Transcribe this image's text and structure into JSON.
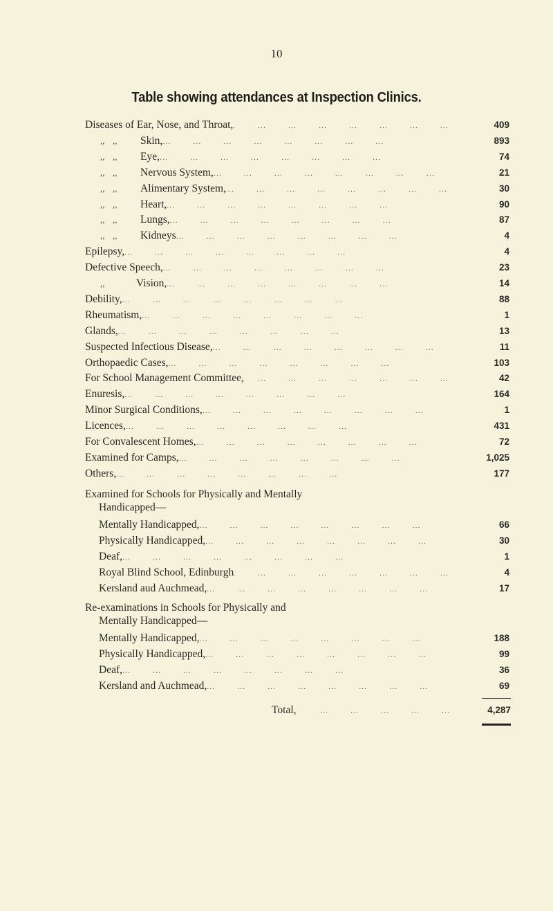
{
  "page_number": "10",
  "title": "Table showing attendances at Inspection Clinics.",
  "ditto_mark": ",,",
  "rows": [
    {
      "label": "Diseases of Ear, Nose, and Throat,",
      "value": "409"
    },
    {
      "label": "Skin,",
      "value": "893",
      "ditto": 2
    },
    {
      "label": "Eye,",
      "value": "74",
      "ditto": 2
    },
    {
      "label": "Nervous System,",
      "value": "21",
      "ditto": 2
    },
    {
      "label": "Alimentary System,",
      "value": "30",
      "ditto": 2
    },
    {
      "label": "Heart,",
      "value": "90",
      "ditto": 2
    },
    {
      "label": "Lungs,",
      "value": "87",
      "ditto": 2
    },
    {
      "label": "Kidneys",
      "value": "4",
      "ditto": 2
    },
    {
      "label": "Epilepsy,",
      "value": "4"
    },
    {
      "label": "Defective Speech,",
      "value": "23"
    },
    {
      "label": "Vision,",
      "value": "14",
      "ditto": 1
    },
    {
      "label": "Debility,",
      "value": "88"
    },
    {
      "label": "Rheumatism,",
      "value": "1"
    },
    {
      "label": "Glands,",
      "value": "13"
    },
    {
      "label": "Suspected Infectious Disease,",
      "value": "11"
    },
    {
      "label": "Orthopaedic Cases,",
      "value": "103"
    },
    {
      "label": "For School Management Committee,",
      "value": "42"
    },
    {
      "label": "Enuresis,",
      "value": "164"
    },
    {
      "label": "Minor Surgical Conditions,",
      "value": "1"
    },
    {
      "label": "Licences,",
      "value": "431"
    },
    {
      "label": "For Convalescent Homes,",
      "value": "72"
    },
    {
      "label": "Examined for Camps,",
      "value": "1,025"
    },
    {
      "label": "Others,",
      "value": "177"
    }
  ],
  "section1": {
    "heading_line1": "Examined for Schools for Physically and Mentally",
    "heading_line2": "Handicapped—",
    "rows": [
      {
        "label": "Mentally Handicapped,",
        "value": "66"
      },
      {
        "label": "Physically Handicapped,",
        "value": "30"
      },
      {
        "label": "Deaf,",
        "value": "1"
      },
      {
        "label": "Royal Blind School, Edinburgh",
        "value": "4"
      },
      {
        "label": "Kersland aud Auchmead,",
        "value": "17"
      }
    ]
  },
  "section2": {
    "heading_line1": "Re-examinations in Schools for Physically and",
    "heading_line2": "Mentally Handicapped—",
    "rows": [
      {
        "label": "Mentally Handicapped,",
        "value": "188"
      },
      {
        "label": "Physically Handicapped,",
        "value": "99"
      },
      {
        "label": "Deaf,",
        "value": "36"
      },
      {
        "label": "Kersland and Auchmead,",
        "value": "69"
      }
    ]
  },
  "total": {
    "label": "Total,",
    "value": "4,287"
  }
}
